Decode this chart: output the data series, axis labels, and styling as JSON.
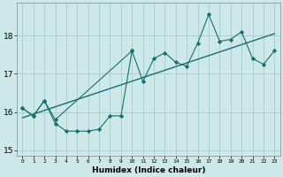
{
  "xlabel": "Humidex (Indice chaleur)",
  "bg_color": "#cce8e8",
  "grid_color": "#aacccc",
  "line_color": "#1a6e6e",
  "upper_x": [
    0,
    1,
    2,
    3,
    10,
    11,
    12,
    13,
    14,
    15,
    16,
    17,
    18,
    19,
    20,
    21,
    22,
    23
  ],
  "upper_y": [
    16.1,
    15.9,
    16.3,
    15.8,
    17.6,
    16.8,
    17.4,
    17.55,
    17.3,
    17.2,
    17.8,
    18.55,
    17.85,
    17.9,
    18.1,
    17.4,
    17.25,
    17.6
  ],
  "lower_x": [
    0,
    1,
    2,
    3,
    4,
    5,
    6,
    7,
    8,
    9,
    10
  ],
  "lower_y": [
    16.1,
    15.9,
    16.3,
    15.7,
    15.5,
    15.5,
    15.5,
    15.55,
    15.9,
    15.9,
    17.6
  ],
  "trend_x": [
    0,
    23
  ],
  "trend_y": [
    15.85,
    18.05
  ],
  "ylim": [
    14.85,
    18.85
  ],
  "xlim": [
    -0.5,
    23.5
  ],
  "yticks": [
    15,
    16,
    17,
    18
  ],
  "xtick_labels": [
    "0",
    "1",
    "2",
    "3",
    "4",
    "5",
    "6",
    "7",
    "8",
    "9",
    "10",
    "11",
    "12",
    "13",
    "14",
    "15",
    "16",
    "17",
    "18",
    "19",
    "20",
    "21",
    "22",
    "23"
  ]
}
